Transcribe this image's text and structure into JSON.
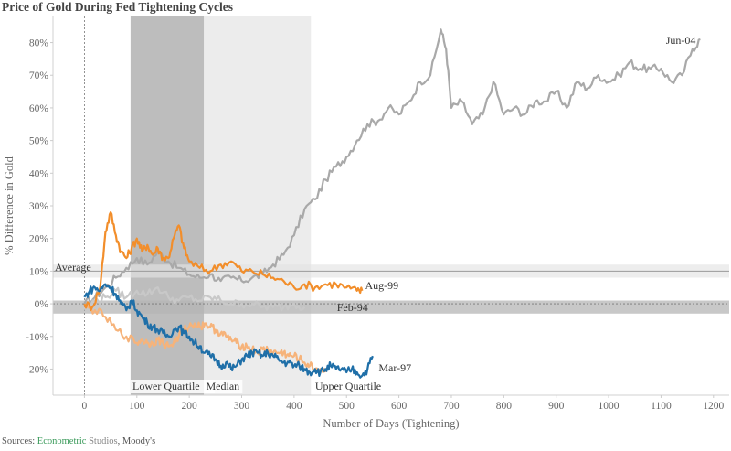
{
  "title": "Price of Gold During Fed Tightening Cycles",
  "sources": {
    "prefix": "Sources: ",
    "part1": "Econometric",
    "part2": "Studios",
    "sep": ", ",
    "part3": "Moody's"
  },
  "chart_data": {
    "type": "line",
    "title": "Price of Gold During Fed Tightening Cycles",
    "xlabel": "Number of Days (Tightening)",
    "ylabel": "% Difference in Gold",
    "xlim": [
      -60,
      1230
    ],
    "ylim": [
      -28,
      88
    ],
    "x_ticks": [
      0,
      100,
      200,
      300,
      400,
      500,
      600,
      700,
      800,
      900,
      1000,
      1100,
      1200
    ],
    "y_ticks": [
      -20,
      -10,
      0,
      10,
      20,
      30,
      40,
      50,
      60,
      70,
      80
    ],
    "y_tick_labels": [
      "-20%",
      "-10%",
      "0%",
      "10%",
      "20%",
      "30%",
      "40%",
      "50%",
      "60%",
      "70%",
      "80%"
    ],
    "grid": false,
    "reference_lines": [
      {
        "label": "Average",
        "y": 10,
        "band": [
          8,
          12
        ]
      },
      {
        "label": "",
        "y": 0,
        "band": [
          -3,
          1
        ]
      }
    ],
    "shaded_regions": [
      {
        "label": "Lower Quartile",
        "x": [
          88,
          228
        ],
        "color": "#bdbdbd"
      },
      {
        "label": "Median",
        "x": [
          228,
          432
        ],
        "color": "#ececec"
      },
      {
        "label": "Upper Quartile",
        "x": [
          432,
          432
        ],
        "color": "#ececec"
      }
    ],
    "series": [
      {
        "name": "Jun-04",
        "color": "#a9a9a9",
        "points": [
          [
            0,
            0
          ],
          [
            20,
            2
          ],
          [
            40,
            5
          ],
          [
            60,
            8
          ],
          [
            80,
            11
          ],
          [
            100,
            14
          ],
          [
            120,
            12
          ],
          [
            140,
            16
          ],
          [
            160,
            13
          ],
          [
            180,
            11
          ],
          [
            200,
            9
          ],
          [
            220,
            8
          ],
          [
            240,
            9
          ],
          [
            260,
            7
          ],
          [
            280,
            8
          ],
          [
            300,
            7
          ],
          [
            320,
            8
          ],
          [
            340,
            9
          ],
          [
            360,
            12
          ],
          [
            380,
            15
          ],
          [
            400,
            21
          ],
          [
            420,
            29
          ],
          [
            440,
            32
          ],
          [
            460,
            38
          ],
          [
            480,
            42
          ],
          [
            500,
            45
          ],
          [
            520,
            50
          ],
          [
            540,
            55
          ],
          [
            560,
            56
          ],
          [
            580,
            60
          ],
          [
            600,
            58
          ],
          [
            620,
            62
          ],
          [
            640,
            68
          ],
          [
            660,
            70
          ],
          [
            680,
            84
          ],
          [
            690,
            78
          ],
          [
            700,
            60
          ],
          [
            720,
            62
          ],
          [
            740,
            55
          ],
          [
            760,
            58
          ],
          [
            780,
            68
          ],
          [
            800,
            58
          ],
          [
            820,
            60
          ],
          [
            840,
            58
          ],
          [
            860,
            62
          ],
          [
            880,
            62
          ],
          [
            900,
            65
          ],
          [
            920,
            60
          ],
          [
            940,
            68
          ],
          [
            960,
            66
          ],
          [
            980,
            70
          ],
          [
            1000,
            68
          ],
          [
            1020,
            70
          ],
          [
            1040,
            74
          ],
          [
            1060,
            72
          ],
          [
            1080,
            72
          ],
          [
            1100,
            72
          ],
          [
            1120,
            68
          ],
          [
            1140,
            70
          ],
          [
            1160,
            78
          ],
          [
            1175,
            81
          ]
        ]
      },
      {
        "name": "Aug-99",
        "color": "#f28e2b",
        "points": [
          [
            0,
            0
          ],
          [
            15,
            -1
          ],
          [
            30,
            5
          ],
          [
            40,
            22
          ],
          [
            50,
            28
          ],
          [
            60,
            21
          ],
          [
            70,
            16
          ],
          [
            80,
            14
          ],
          [
            90,
            17
          ],
          [
            100,
            20
          ],
          [
            110,
            16
          ],
          [
            120,
            18
          ],
          [
            130,
            15
          ],
          [
            140,
            17
          ],
          [
            150,
            14
          ],
          [
            160,
            14
          ],
          [
            170,
            20
          ],
          [
            180,
            24
          ],
          [
            190,
            17
          ],
          [
            200,
            13
          ],
          [
            220,
            11
          ],
          [
            240,
            10
          ],
          [
            260,
            12
          ],
          [
            280,
            13
          ],
          [
            300,
            10
          ],
          [
            320,
            10
          ],
          [
            340,
            9
          ],
          [
            360,
            8
          ],
          [
            380,
            7
          ],
          [
            400,
            5
          ],
          [
            420,
            6
          ],
          [
            440,
            5
          ],
          [
            460,
            6
          ],
          [
            480,
            6
          ],
          [
            500,
            5
          ],
          [
            520,
            4
          ],
          [
            530,
            4
          ]
        ]
      },
      {
        "name": "Feb-94",
        "color": "#c8c8c8",
        "points": [
          [
            0,
            -2
          ],
          [
            20,
            1
          ],
          [
            40,
            2
          ],
          [
            60,
            4
          ],
          [
            80,
            2
          ],
          [
            100,
            4
          ],
          [
            120,
            3
          ],
          [
            140,
            5
          ],
          [
            160,
            2
          ],
          [
            180,
            1
          ],
          [
            200,
            2
          ],
          [
            220,
            1
          ],
          [
            240,
            2
          ],
          [
            260,
            1
          ],
          [
            280,
            0
          ],
          [
            300,
            0
          ],
          [
            320,
            0
          ],
          [
            340,
            -1
          ],
          [
            360,
            -1
          ],
          [
            380,
            -1
          ],
          [
            400,
            0
          ],
          [
            420,
            -1
          ]
        ]
      },
      {
        "name": "Mar-97",
        "color": "#1f6fa8",
        "points": [
          [
            0,
            2
          ],
          [
            10,
            4
          ],
          [
            20,
            5
          ],
          [
            30,
            4
          ],
          [
            40,
            6
          ],
          [
            50,
            5
          ],
          [
            60,
            3
          ],
          [
            70,
            0
          ],
          [
            80,
            -2
          ],
          [
            90,
            1
          ],
          [
            100,
            -2
          ],
          [
            110,
            -4
          ],
          [
            120,
            -6
          ],
          [
            130,
            -7
          ],
          [
            140,
            -8
          ],
          [
            150,
            -9
          ],
          [
            160,
            -10
          ],
          [
            170,
            -8
          ],
          [
            180,
            -7
          ],
          [
            190,
            -9
          ],
          [
            200,
            -10
          ],
          [
            210,
            -12
          ],
          [
            220,
            -13
          ],
          [
            230,
            -15
          ],
          [
            240,
            -16
          ],
          [
            250,
            -17
          ],
          [
            260,
            -19
          ],
          [
            270,
            -18
          ],
          [
            280,
            -20
          ],
          [
            290,
            -19
          ],
          [
            300,
            -17
          ],
          [
            310,
            -16
          ],
          [
            320,
            -15
          ],
          [
            330,
            -15
          ],
          [
            340,
            -16
          ],
          [
            350,
            -15
          ],
          [
            360,
            -16
          ],
          [
            370,
            -17
          ],
          [
            380,
            -18
          ],
          [
            390,
            -18
          ],
          [
            400,
            -19
          ],
          [
            410,
            -19
          ],
          [
            420,
            -20
          ],
          [
            430,
            -21
          ],
          [
            440,
            -20
          ],
          [
            450,
            -21
          ],
          [
            460,
            -20
          ],
          [
            470,
            -19
          ],
          [
            480,
            -20
          ],
          [
            490,
            -20
          ],
          [
            500,
            -21
          ],
          [
            510,
            -20
          ],
          [
            520,
            -21
          ],
          [
            530,
            -22
          ],
          [
            540,
            -20
          ],
          [
            550,
            -16
          ]
        ]
      },
      {
        "name": "",
        "color": "#f6b37a",
        "points": [
          [
            0,
            -1
          ],
          [
            20,
            -2
          ],
          [
            40,
            -4
          ],
          [
            60,
            -8
          ],
          [
            80,
            -10
          ],
          [
            100,
            -12
          ],
          [
            110,
            -11
          ],
          [
            120,
            -12
          ],
          [
            130,
            -12
          ],
          [
            140,
            -11
          ],
          [
            150,
            -12
          ],
          [
            160,
            -13
          ],
          [
            170,
            -12
          ],
          [
            180,
            -10
          ],
          [
            190,
            -8
          ],
          [
            200,
            -7
          ],
          [
            210,
            -6
          ],
          [
            220,
            -7
          ],
          [
            230,
            -6
          ],
          [
            240,
            -7
          ],
          [
            250,
            -8
          ],
          [
            260,
            -9
          ],
          [
            270,
            -10
          ],
          [
            280,
            -11
          ],
          [
            290,
            -12
          ],
          [
            300,
            -13
          ],
          [
            310,
            -13
          ],
          [
            320,
            -14
          ],
          [
            330,
            -15
          ],
          [
            340,
            -14
          ],
          [
            350,
            -14
          ],
          [
            360,
            -15
          ],
          [
            370,
            -15
          ],
          [
            380,
            -15
          ],
          [
            390,
            -16
          ],
          [
            400,
            -16
          ],
          [
            410,
            -17
          ],
          [
            420,
            -18
          ],
          [
            430,
            -19
          ],
          [
            440,
            -20
          ],
          [
            450,
            -20
          ],
          [
            460,
            -21
          ]
        ]
      }
    ],
    "annotations": [
      {
        "text": "Average"
      },
      {
        "text": "Jun-04"
      },
      {
        "text": "Aug-99"
      },
      {
        "text": "Feb-94"
      },
      {
        "text": "Mar-97"
      },
      {
        "text": "Lower Quartile"
      },
      {
        "text": "Median"
      },
      {
        "text": "Upper Quartile"
      }
    ]
  }
}
